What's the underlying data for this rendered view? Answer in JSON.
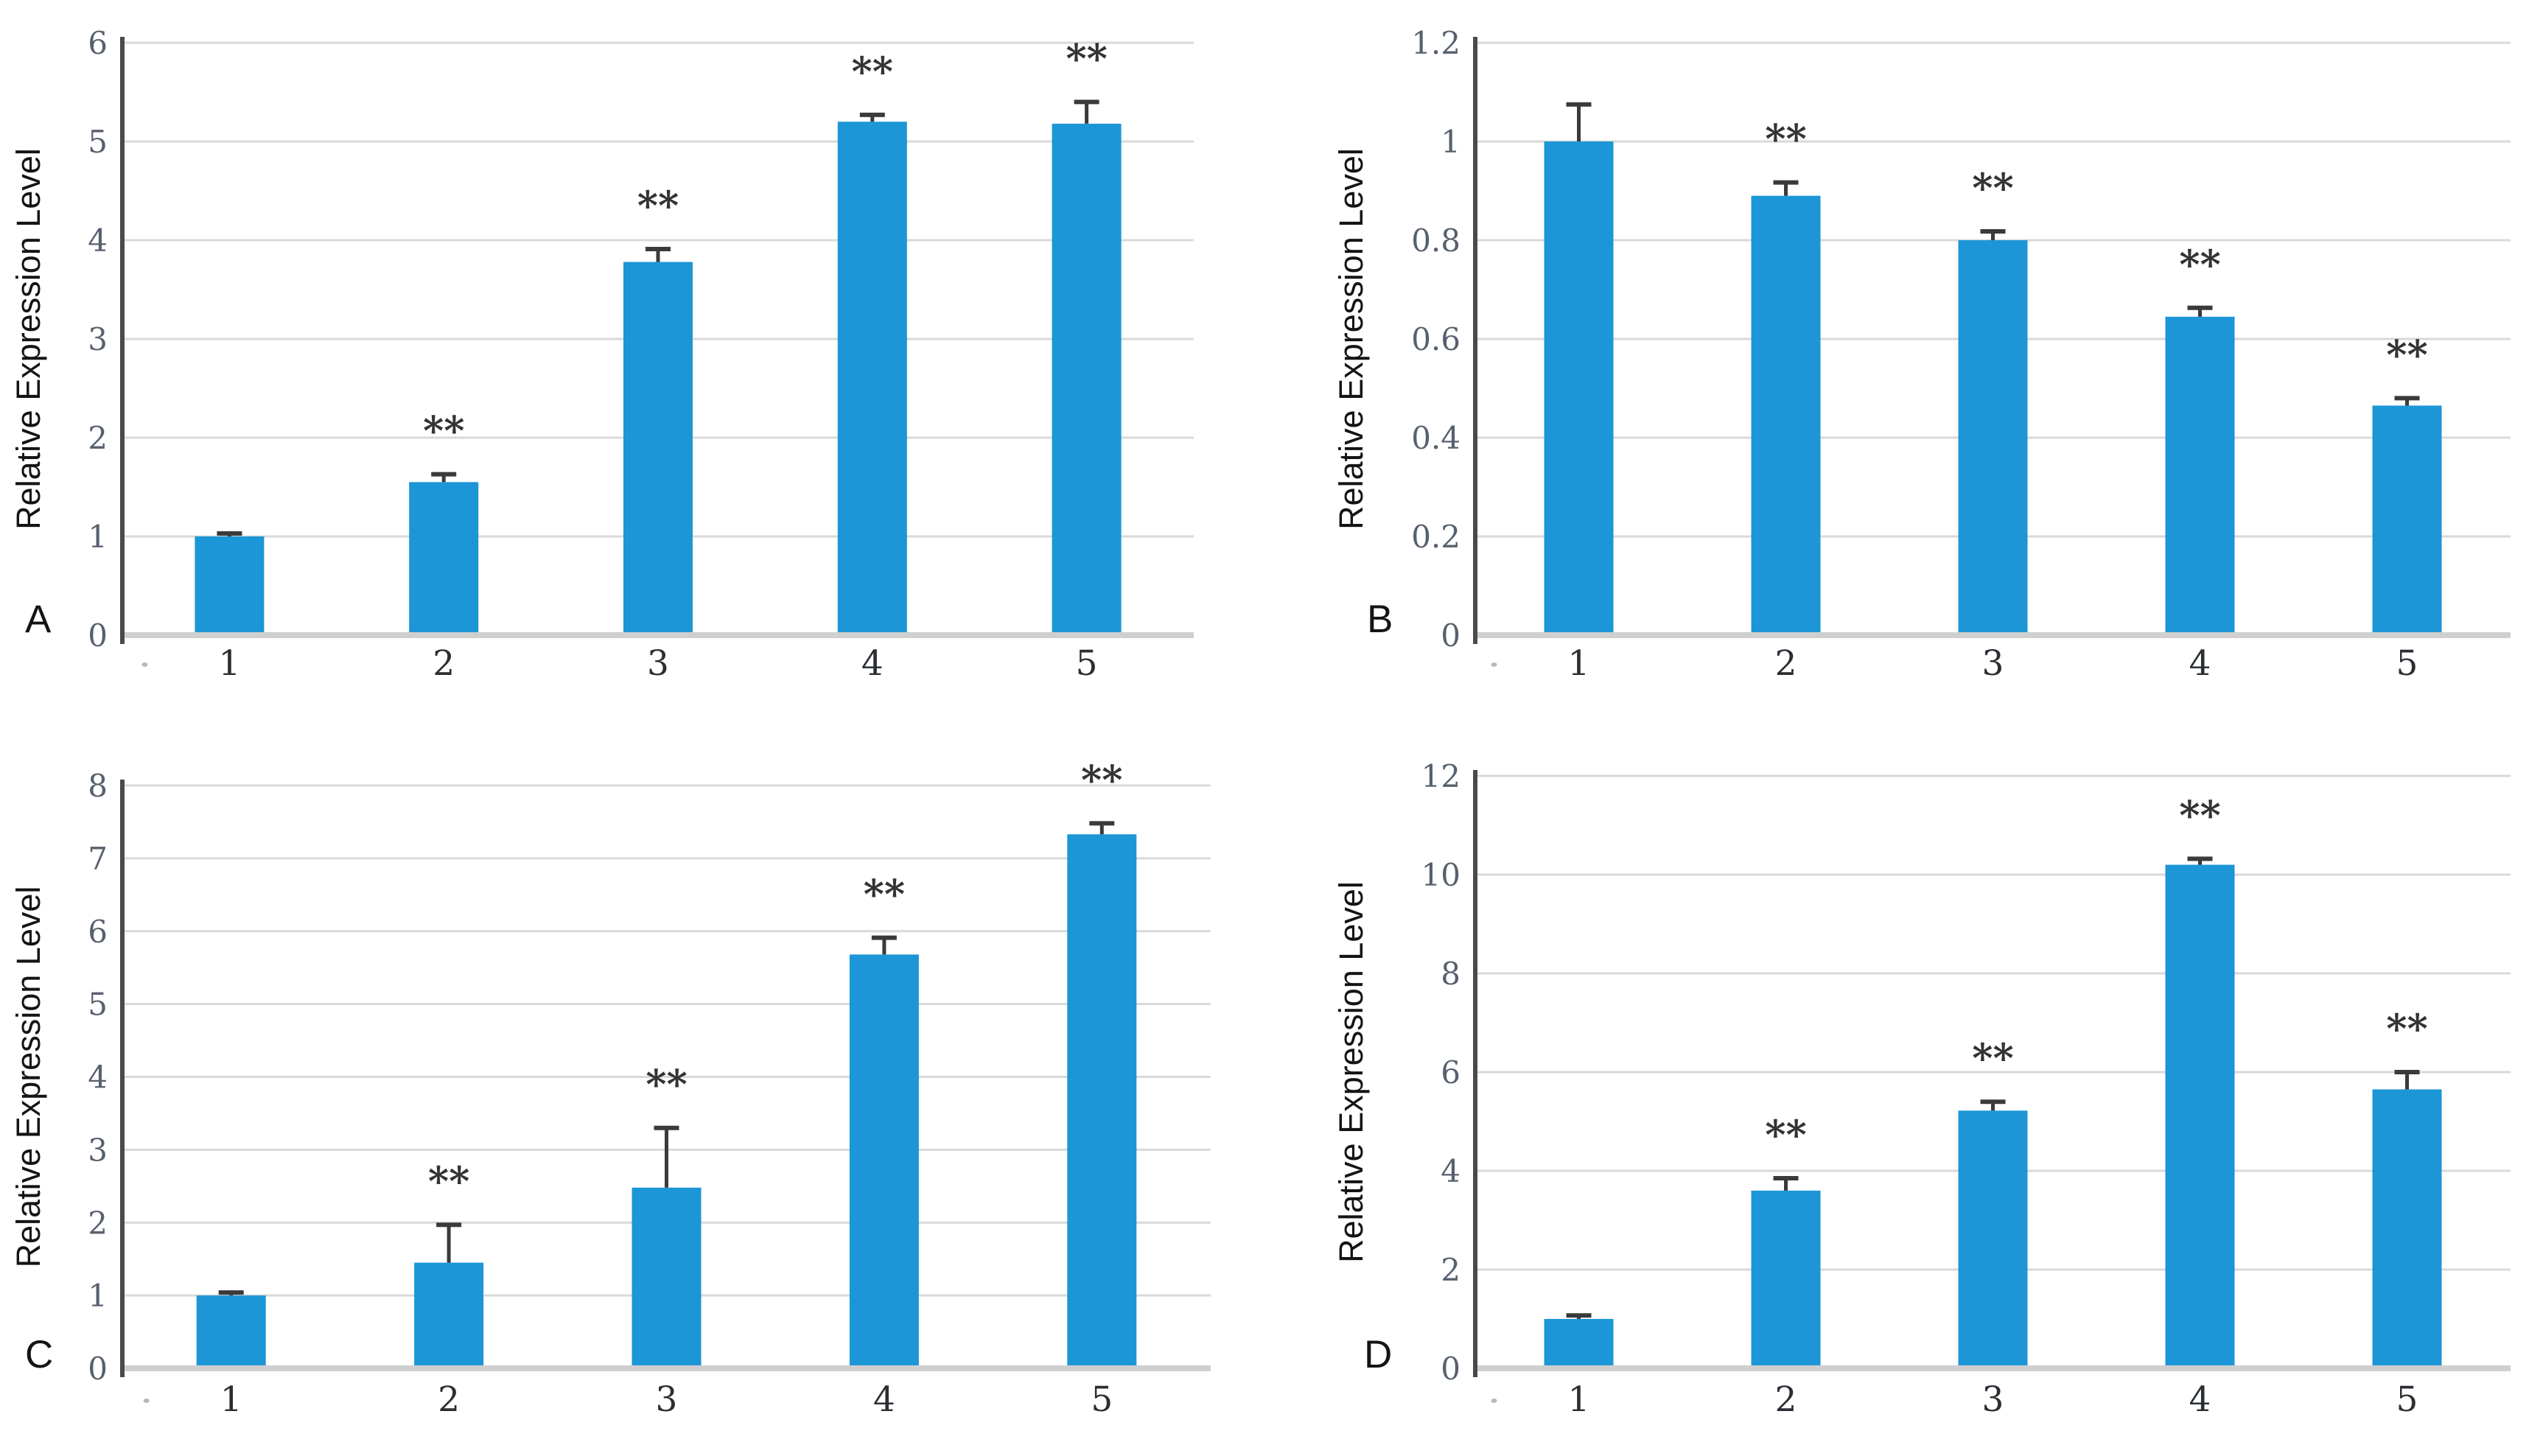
{
  "figure": {
    "background": "#ffffff",
    "description_visible_text_only": true
  },
  "styles": {
    "bar_color": "#1C96D6",
    "grid_color": "#D9D9D9",
    "x_axis_color": "#CFCFCF",
    "y_axis_color": "#4a4a4a",
    "error_bar_color": "#3a3a3a",
    "significance_color": "#333333",
    "y_tick_color": "#57606e",
    "x_tick_color": "#2b2f33"
  },
  "chart_data": [
    {
      "panel": "A",
      "type": "bar",
      "title": "",
      "ylabel": "Relative Expression Level",
      "xlabel": "",
      "categories": [
        "1",
        "2",
        "3",
        "4",
        "5"
      ],
      "values": [
        1.0,
        1.55,
        3.78,
        5.2,
        5.18
      ],
      "errors": [
        0.03,
        0.08,
        0.13,
        0.07,
        0.22
      ],
      "significance": [
        "",
        "**",
        "**",
        "**",
        "**"
      ],
      "ylim": [
        0,
        6
      ],
      "yticks": [
        0,
        1,
        2,
        3,
        4,
        5,
        6
      ],
      "ytick_labels": [
        "0",
        "1",
        "2",
        "3",
        "4",
        "5",
        "6"
      ],
      "grid": true,
      "legend": "none"
    },
    {
      "panel": "B",
      "type": "bar",
      "title": "",
      "ylabel": "Relative Expression Level",
      "xlabel": "",
      "categories": [
        "1",
        "2",
        "3",
        "4",
        "5"
      ],
      "values": [
        1.0,
        0.89,
        0.8,
        0.645,
        0.465
      ],
      "errors": [
        0.075,
        0.027,
        0.018,
        0.018,
        0.015
      ],
      "significance": [
        "",
        "**",
        "**",
        "**",
        "**"
      ],
      "ylim": [
        0,
        1.2
      ],
      "yticks": [
        0,
        0.2,
        0.4,
        0.6,
        0.8,
        1,
        1.2
      ],
      "ytick_labels": [
        "0",
        "0.2",
        "0.4",
        "0.6",
        "0.8",
        "1",
        "1.2"
      ],
      "grid": true,
      "legend": "none"
    },
    {
      "panel": "C",
      "type": "bar",
      "title": "",
      "ylabel": "Relative Expression Level",
      "xlabel": "",
      "categories": [
        "1",
        "2",
        "3",
        "4",
        "5"
      ],
      "values": [
        1.0,
        1.45,
        2.48,
        5.68,
        7.33
      ],
      "errors": [
        0.04,
        0.52,
        0.82,
        0.23,
        0.15
      ],
      "significance": [
        "",
        "**",
        "**",
        "**",
        "**"
      ],
      "ylim": [
        0,
        8
      ],
      "yticks": [
        0,
        1,
        2,
        3,
        4,
        5,
        6,
        7,
        8
      ],
      "ytick_labels": [
        "0",
        "1",
        "2",
        "3",
        "4",
        "5",
        "6",
        "7",
        "8"
      ],
      "grid": true,
      "legend": "none"
    },
    {
      "panel": "D",
      "type": "bar",
      "title": "",
      "ylabel": "Relative Expression Level",
      "xlabel": "",
      "categories": [
        "1",
        "2",
        "3",
        "4",
        "5"
      ],
      "values": [
        1.0,
        3.6,
        5.22,
        10.2,
        5.65
      ],
      "errors": [
        0.07,
        0.25,
        0.18,
        0.12,
        0.35
      ],
      "significance": [
        "",
        "**",
        "**",
        "**",
        "**"
      ],
      "ylim": [
        0,
        12
      ],
      "yticks": [
        0,
        2,
        4,
        6,
        8,
        10,
        12
      ],
      "ytick_labels": [
        "0",
        "2",
        "4",
        "6",
        "8",
        "10",
        "12"
      ],
      "grid": true,
      "legend": "none"
    }
  ]
}
